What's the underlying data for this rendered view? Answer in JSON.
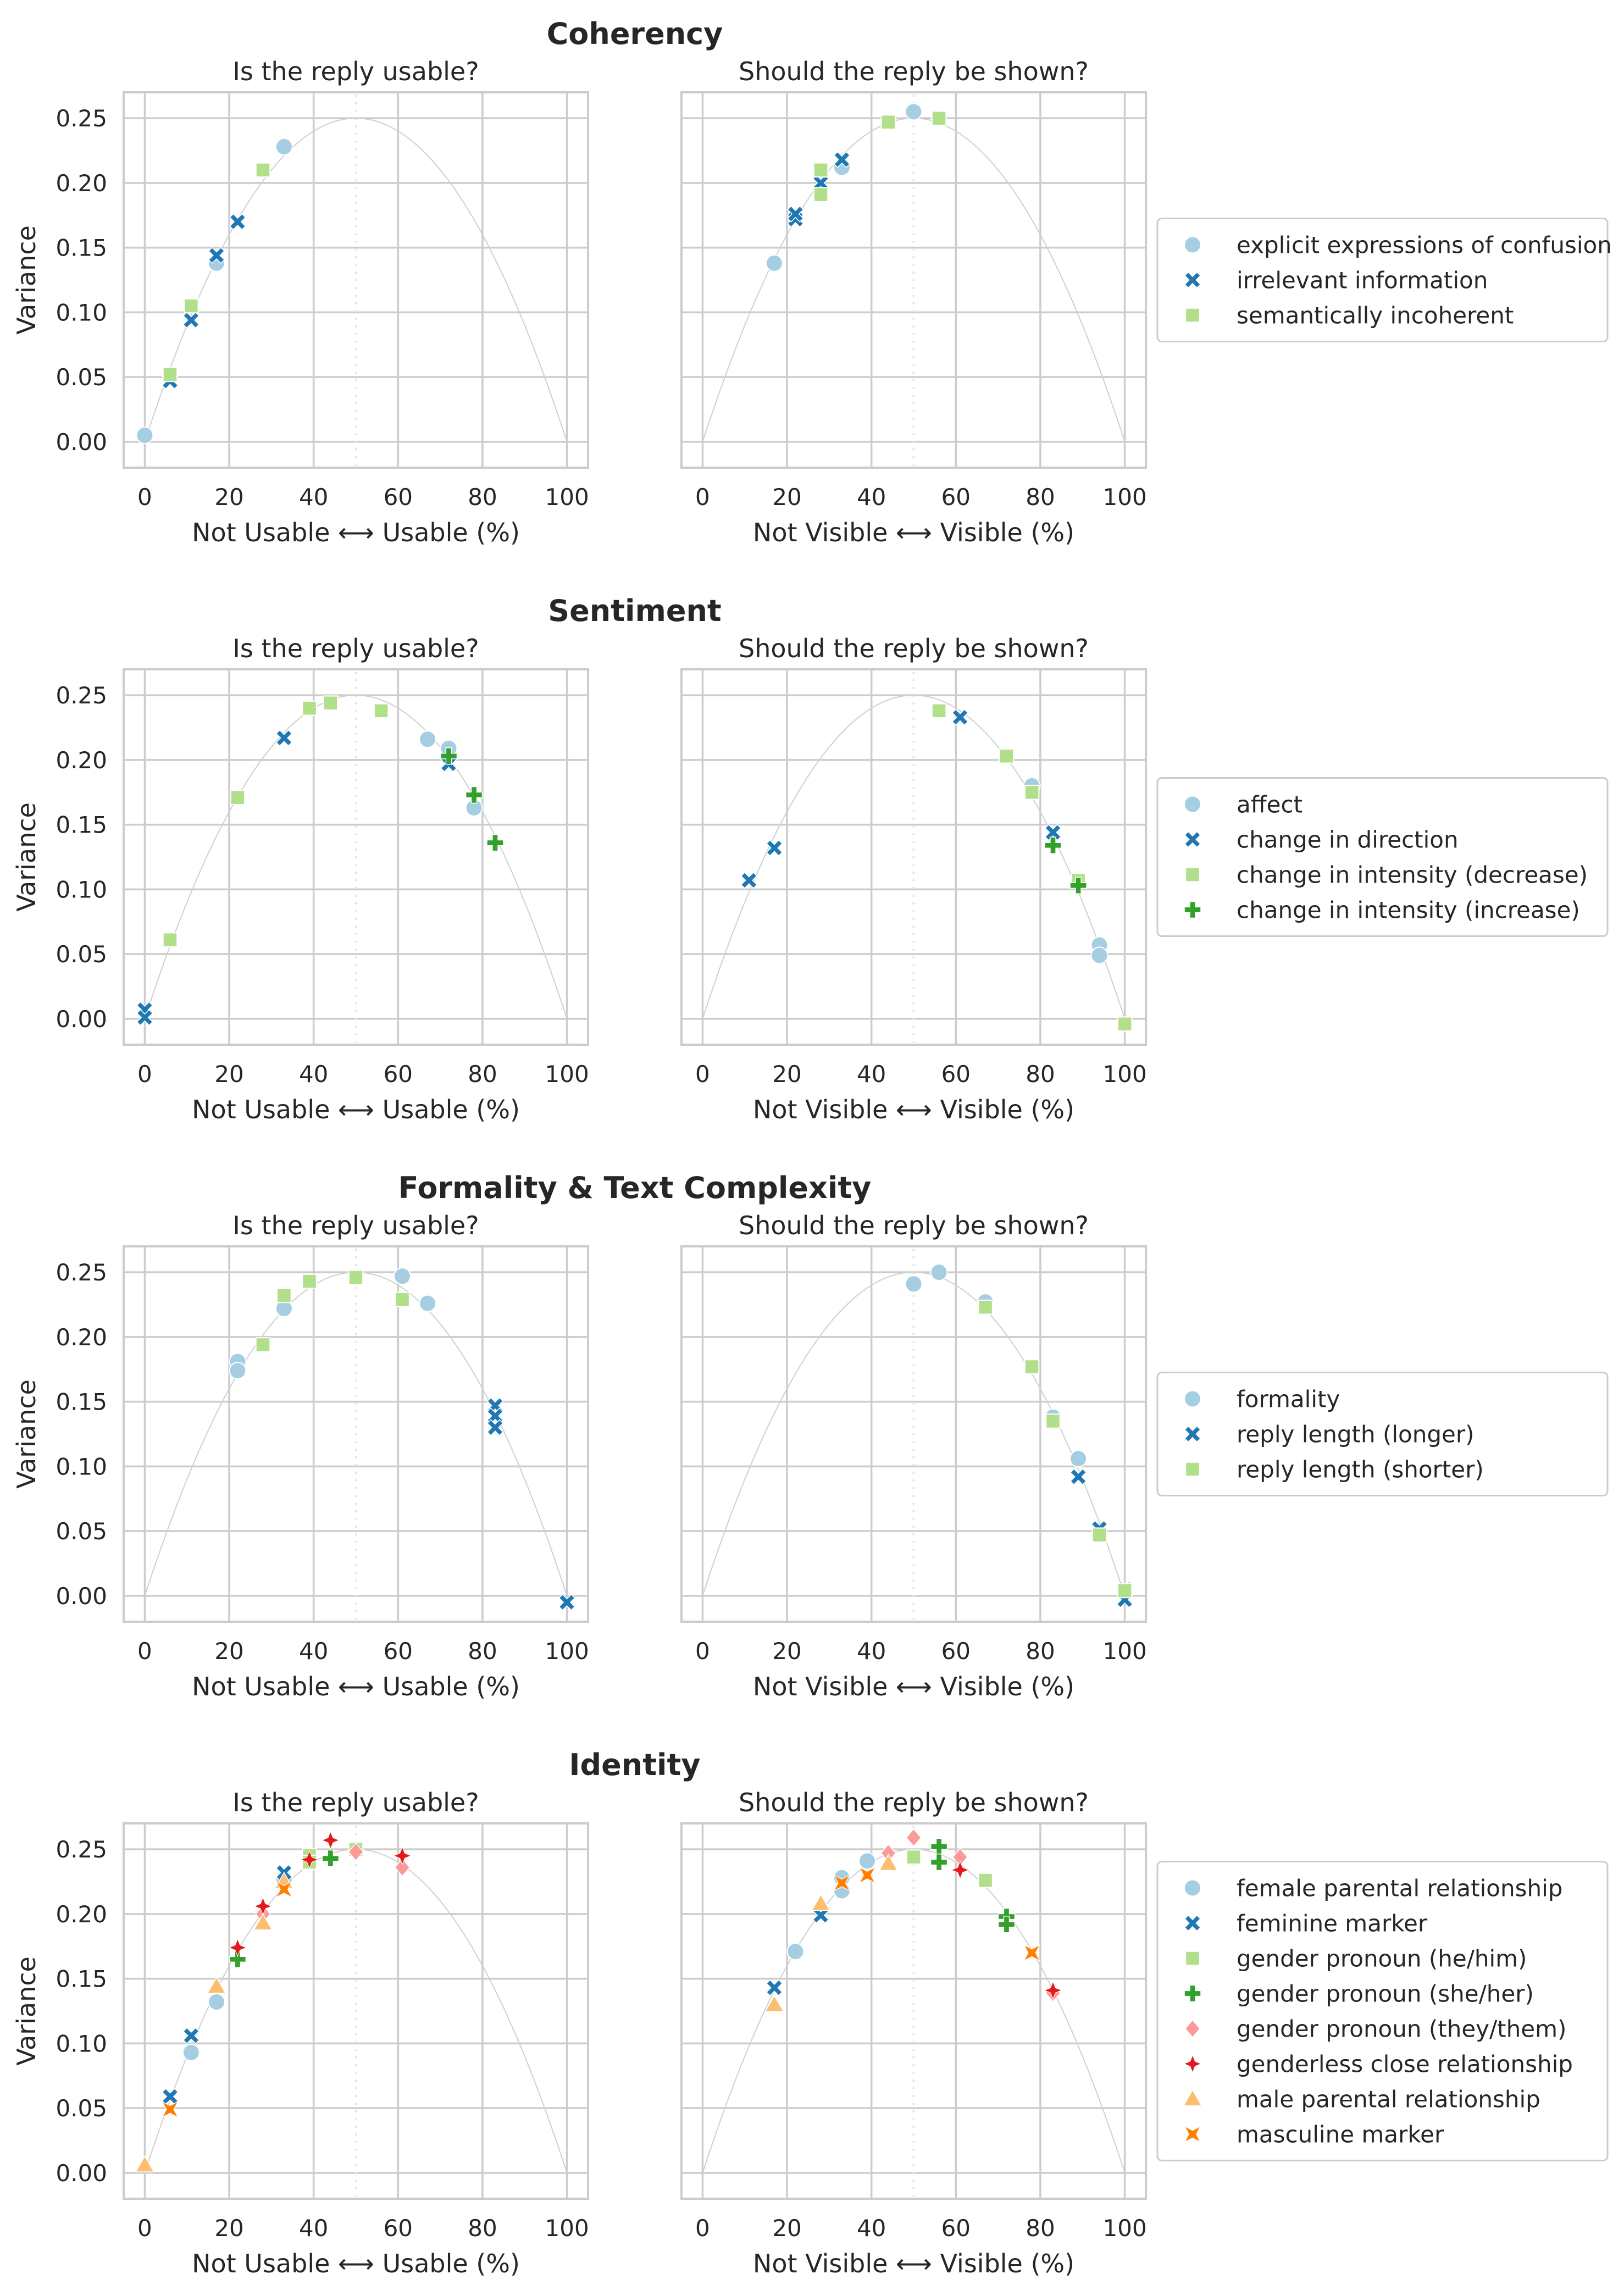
{
  "figure": {
    "left_title": "Is the reply usable?",
    "right_title": "Should the reply be shown?",
    "left_xlabel": "Not Usable ⟷ Usable (%)",
    "right_xlabel": "Not Visible ⟷ Visible (%)",
    "ylabel": "Variance",
    "x_ticks": [
      0,
      20,
      40,
      60,
      80,
      100
    ],
    "y_ticks": [
      0.0,
      0.05,
      0.1,
      0.15,
      0.2,
      0.25
    ],
    "y_tick_labels": [
      "0.00",
      "0.05",
      "0.10",
      "0.15",
      "0.20",
      "0.25"
    ]
  },
  "colors": {
    "c0": "#a6cee3",
    "c1": "#1f78b4",
    "c2": "#b2df8a",
    "c3": "#33a02c",
    "c4": "#fb9a99",
    "c5": "#e31a1c",
    "c6": "#fdbf6f",
    "c7": "#ff7f00",
    "grid": "#cccccc",
    "curve": "#d0d0d0"
  },
  "chart_data": [
    {
      "type": "scatter",
      "title": "Coherency",
      "xlim": [
        -5,
        105
      ],
      "ylim": [
        -0.02,
        0.27
      ],
      "series": [
        {
          "name": "explicit expressions of confusion",
          "marker": "circle",
          "color": "c0",
          "usable": [
            [
              0,
              0.005
            ],
            [
              17,
              0.138
            ],
            [
              33,
              0.228
            ]
          ],
          "shown": [
            [
              17,
              0.138
            ],
            [
              33,
              0.212
            ],
            [
              50,
              0.255
            ]
          ]
        },
        {
          "name": "irrelevant information",
          "marker": "x",
          "color": "c1",
          "usable": [
            [
              6,
              0.047
            ],
            [
              11,
              0.094
            ],
            [
              17,
              0.144
            ],
            [
              22,
              0.17
            ]
          ],
          "shown": [
            [
              22,
              0.172
            ],
            [
              22,
              0.176
            ],
            [
              28,
              0.2
            ],
            [
              33,
              0.218
            ]
          ]
        },
        {
          "name": "semantically incoherent",
          "marker": "square",
          "color": "c2",
          "usable": [
            [
              6,
              0.052
            ],
            [
              11,
              0.105
            ],
            [
              28,
              0.21
            ]
          ],
          "shown": [
            [
              28,
              0.191
            ],
            [
              28,
              0.21
            ],
            [
              44,
              0.247
            ],
            [
              56,
              0.25
            ]
          ]
        }
      ]
    },
    {
      "type": "scatter",
      "title": "Sentiment",
      "xlim": [
        -5,
        105
      ],
      "ylim": [
        -0.02,
        0.27
      ],
      "series": [
        {
          "name": "affect",
          "marker": "circle",
          "color": "c0",
          "usable": [
            [
              67,
              0.216
            ],
            [
              72,
              0.209
            ],
            [
              78,
              0.163
            ]
          ],
          "shown": [
            [
              78,
              0.18
            ],
            [
              94,
              0.057
            ],
            [
              94,
              0.049
            ]
          ]
        },
        {
          "name": "change in direction",
          "marker": "x",
          "color": "c1",
          "usable": [
            [
              0,
              0.007
            ],
            [
              0,
              0.001
            ],
            [
              33,
              0.217
            ],
            [
              72,
              0.197
            ]
          ],
          "shown": [
            [
              11,
              0.107
            ],
            [
              17,
              0.132
            ],
            [
              61,
              0.233
            ],
            [
              83,
              0.144
            ]
          ]
        },
        {
          "name": "change in intensity (decrease)",
          "marker": "square",
          "color": "c2",
          "usable": [
            [
              6,
              0.061
            ],
            [
              22,
              0.171
            ],
            [
              39,
              0.24
            ],
            [
              44,
              0.244
            ],
            [
              56,
              0.238
            ]
          ],
          "shown": [
            [
              56,
              0.238
            ],
            [
              72,
              0.203
            ],
            [
              78,
              0.175
            ],
            [
              89,
              0.107
            ],
            [
              100,
              -0.004
            ]
          ]
        },
        {
          "name": "change in intensity (increase)",
          "marker": "plus",
          "color": "c3",
          "usable": [
            [
              72,
              0.203
            ],
            [
              78,
              0.173
            ],
            [
              83,
              0.136
            ]
          ],
          "shown": [
            [
              83,
              0.134
            ],
            [
              89,
              0.103
            ]
          ]
        }
      ]
    },
    {
      "type": "scatter",
      "title": "Formality & Text Complexity",
      "xlim": [
        -5,
        105
      ],
      "ylim": [
        -0.02,
        0.27
      ],
      "series": [
        {
          "name": "formality",
          "marker": "circle",
          "color": "c0",
          "usable": [
            [
              22,
              0.181
            ],
            [
              22,
              0.174
            ],
            [
              33,
              0.222
            ],
            [
              61,
              0.247
            ],
            [
              67,
              0.226
            ]
          ],
          "shown": [
            [
              50,
              0.241
            ],
            [
              56,
              0.25
            ],
            [
              67,
              0.227
            ],
            [
              83,
              0.138
            ],
            [
              89,
              0.106
            ]
          ]
        },
        {
          "name": "reply length (longer)",
          "marker": "x",
          "color": "c1",
          "usable": [
            [
              83,
              0.147
            ],
            [
              83,
              0.139
            ],
            [
              83,
              0.13
            ],
            [
              100,
              -0.005
            ]
          ],
          "shown": [
            [
              89,
              0.092
            ],
            [
              94,
              0.052
            ],
            [
              100,
              0.005
            ],
            [
              100,
              -0.003
            ]
          ]
        },
        {
          "name": "reply length (shorter)",
          "marker": "square",
          "color": "c2",
          "usable": [
            [
              28,
              0.194
            ],
            [
              33,
              0.232
            ],
            [
              39,
              0.243
            ],
            [
              50,
              0.246
            ],
            [
              61,
              0.229
            ]
          ],
          "shown": [
            [
              67,
              0.223
            ],
            [
              78,
              0.177
            ],
            [
              83,
              0.135
            ],
            [
              94,
              0.047
            ],
            [
              100,
              0.004
            ]
          ]
        }
      ]
    },
    {
      "type": "scatter",
      "title": "Identity",
      "xlim": [
        -5,
        105
      ],
      "ylim": [
        -0.02,
        0.27
      ],
      "series": [
        {
          "name": "female parental relationship",
          "marker": "circle",
          "color": "c0",
          "usable": [
            [
              11,
              0.093
            ],
            [
              17,
              0.132
            ],
            [
              33,
              0.227
            ]
          ],
          "shown": [
            [
              22,
              0.171
            ],
            [
              33,
              0.228
            ],
            [
              33,
              0.218
            ],
            [
              39,
              0.241
            ]
          ]
        },
        {
          "name": "feminine marker",
          "marker": "x",
          "color": "c1",
          "usable": [
            [
              6,
              0.059
            ],
            [
              11,
              0.106
            ],
            [
              33,
              0.232
            ]
          ],
          "shown": [
            [
              17,
              0.143
            ],
            [
              28,
              0.199
            ]
          ]
        },
        {
          "name": "gender pronoun (he/him)",
          "marker": "square",
          "color": "c2",
          "usable": [
            [
              39,
              0.245
            ],
            [
              39,
              0.24
            ],
            [
              50,
              0.25
            ]
          ],
          "shown": [
            [
              50,
              0.244
            ],
            [
              67,
              0.226
            ]
          ]
        },
        {
          "name": "gender pronoun (she/her)",
          "marker": "plus",
          "color": "c3",
          "usable": [
            [
              22,
              0.165
            ],
            [
              44,
              0.243
            ]
          ],
          "shown": [
            [
              56,
              0.252
            ],
            [
              56,
              0.24
            ],
            [
              72,
              0.198
            ],
            [
              72,
              0.192
            ]
          ]
        },
        {
          "name": "gender pronoun (they/them)",
          "marker": "diamond",
          "color": "c4",
          "usable": [
            [
              28,
              0.2
            ],
            [
              50,
              0.248
            ],
            [
              61,
              0.236
            ]
          ],
          "shown": [
            [
              44,
              0.247
            ],
            [
              50,
              0.259
            ],
            [
              61,
              0.244
            ],
            [
              83,
              0.139
            ]
          ]
        },
        {
          "name": "genderless close relationship",
          "marker": "tri_down",
          "color": "c5",
          "usable": [
            [
              22,
              0.174
            ],
            [
              28,
              0.206
            ],
            [
              39,
              0.242
            ],
            [
              44,
              0.257
            ],
            [
              61,
              0.245
            ]
          ],
          "shown": [
            [
              61,
              0.234
            ],
            [
              83,
              0.141
            ]
          ]
        },
        {
          "name": "male parental relationship",
          "marker": "triangle",
          "color": "c6",
          "usable": [
            [
              0,
              0.006
            ],
            [
              17,
              0.144
            ],
            [
              28,
              0.193
            ],
            [
              33,
              0.225
            ]
          ],
          "shown": [
            [
              17,
              0.13
            ],
            [
              28,
              0.208
            ],
            [
              44,
              0.239
            ]
          ]
        },
        {
          "name": "masculine marker",
          "marker": "star4",
          "color": "c7",
          "usable": [
            [
              6,
              0.049
            ],
            [
              33,
              0.219
            ]
          ],
          "shown": [
            [
              33,
              0.224
            ],
            [
              39,
              0.23
            ],
            [
              78,
              0.17
            ]
          ]
        }
      ]
    }
  ]
}
